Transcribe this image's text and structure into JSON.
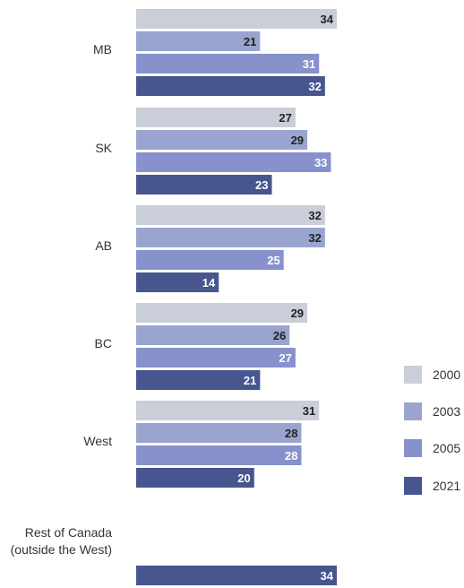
{
  "chart_data": {
    "type": "bar",
    "orientation": "horizontal",
    "categories": [
      "MB",
      "SK",
      "AB",
      "BC",
      "West",
      "Rest of Canada (outside the West)"
    ],
    "category_lines": [
      [
        "MB"
      ],
      [
        "SK"
      ],
      [
        "AB"
      ],
      [
        "BC"
      ],
      [
        "West"
      ],
      [
        "Rest of Canada",
        "(outside the West)"
      ]
    ],
    "series": [
      {
        "name": "2000",
        "color": "#c9ced9",
        "label_color": "#222222",
        "values": [
          34,
          27,
          32,
          29,
          31,
          null
        ]
      },
      {
        "name": "2003",
        "color": "#99a5cf",
        "label_color": "#222222",
        "values": [
          21,
          29,
          32,
          26,
          28,
          null
        ]
      },
      {
        "name": "2005",
        "color": "#8791cc",
        "label_color": "#ffffff",
        "values": [
          31,
          33,
          25,
          27,
          28,
          null
        ]
      },
      {
        "name": "2021",
        "color": "#47568f",
        "label_color": "#ffffff",
        "values": [
          32,
          23,
          14,
          21,
          20,
          34
        ]
      }
    ],
    "xlim": [
      0,
      35
    ],
    "grid": false,
    "legend_position": "right"
  }
}
